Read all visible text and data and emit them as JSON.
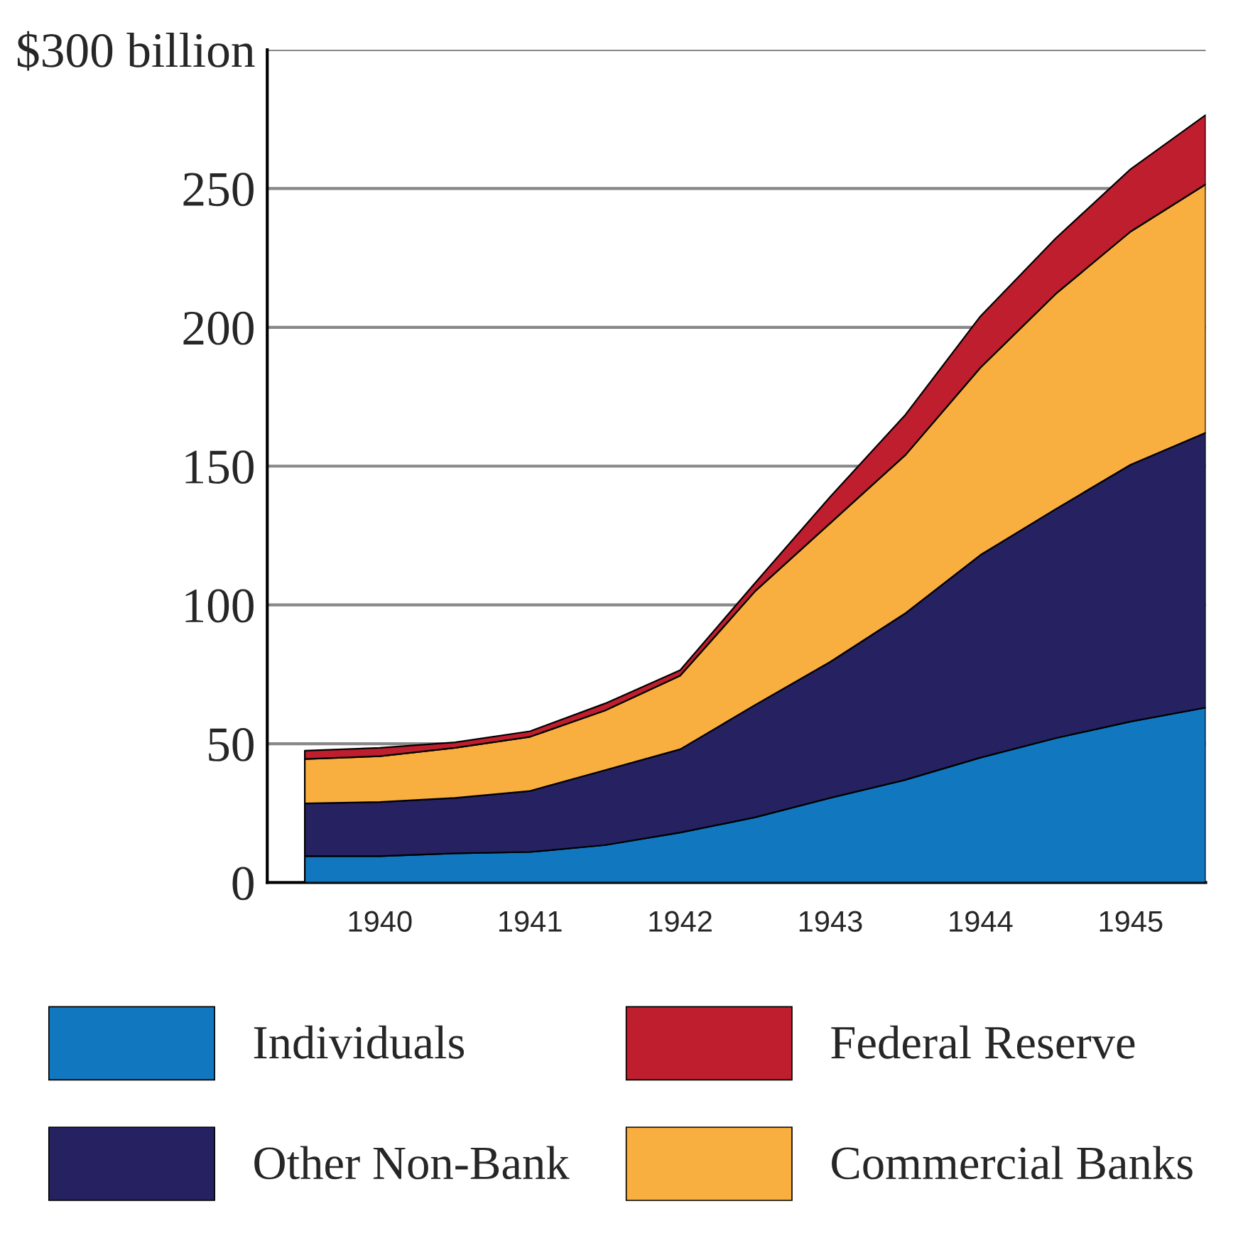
{
  "chart_data": {
    "type": "area",
    "stacked": true,
    "x": [
      1939.5,
      1940,
      1940.5,
      1941,
      1941.5,
      1942,
      1942.5,
      1943,
      1943.5,
      1944,
      1944.5,
      1945,
      1945.5
    ],
    "series": [
      {
        "name": "Individuals",
        "color": "#1177bf",
        "values": [
          9.5,
          9.5,
          10.5,
          11,
          13.5,
          18,
          23.5,
          30.5,
          37,
          45,
          52,
          58,
          63
        ]
      },
      {
        "name": "Other Non-Bank",
        "color": "#262262",
        "values": [
          19,
          19.5,
          20,
          22,
          27,
          30,
          40.5,
          49,
          60,
          73,
          82.5,
          92.5,
          99
        ]
      },
      {
        "name": "Commercial Banks",
        "color": "#f9ae40",
        "values": [
          16,
          16.5,
          18,
          19.5,
          21.5,
          26.5,
          41,
          50,
          57,
          67.5,
          77.5,
          84,
          89.5
        ]
      },
      {
        "name": "Federal Reserve",
        "color": "#be1e2d",
        "values": [
          3,
          3,
          2,
          2,
          2.5,
          2,
          3,
          9.5,
          14.5,
          18.5,
          20,
          22.5,
          25
        ]
      }
    ],
    "xlim": [
      1939.25,
      1945.5
    ],
    "xticks": [
      1940,
      1941,
      1942,
      1943,
      1944,
      1945
    ],
    "ylim": [
      0,
      300
    ],
    "yticks": [
      0,
      50,
      100,
      150,
      200,
      250,
      {
        "value": 300,
        "label": "$300 billion"
      }
    ],
    "grid": "y",
    "legend": "bottom"
  }
}
